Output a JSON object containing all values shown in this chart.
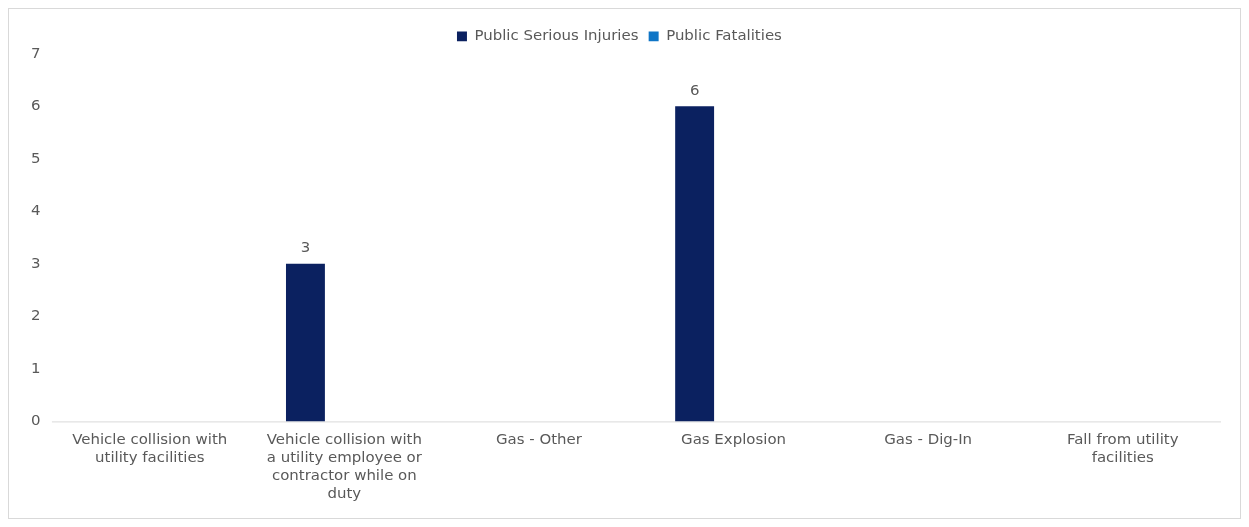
{
  "chart_data": {
    "type": "bar",
    "categories": [
      "Vehicle collision with utility facilities",
      "Vehicle collision with a utility employee or contractor while on duty",
      "Gas - Other",
      "Gas Explosion",
      "Gas - Dig-In",
      "Fall from utility facilities"
    ],
    "series": [
      {
        "name": "Public Serious Injuries",
        "color": "#0b2160",
        "values": [
          0,
          3,
          0,
          6,
          0,
          0
        ],
        "value_labels": [
          null,
          "3",
          null,
          "6",
          null,
          null
        ]
      },
      {
        "name": "Public Fatalities",
        "color": "#0f75c6",
        "values": [
          0,
          0,
          0,
          0,
          0,
          0
        ]
      }
    ],
    "ylim": [
      0,
      7
    ],
    "yticks": [
      0,
      1,
      2,
      3,
      4,
      5,
      6,
      7
    ],
    "grid": false,
    "legend": "top"
  }
}
